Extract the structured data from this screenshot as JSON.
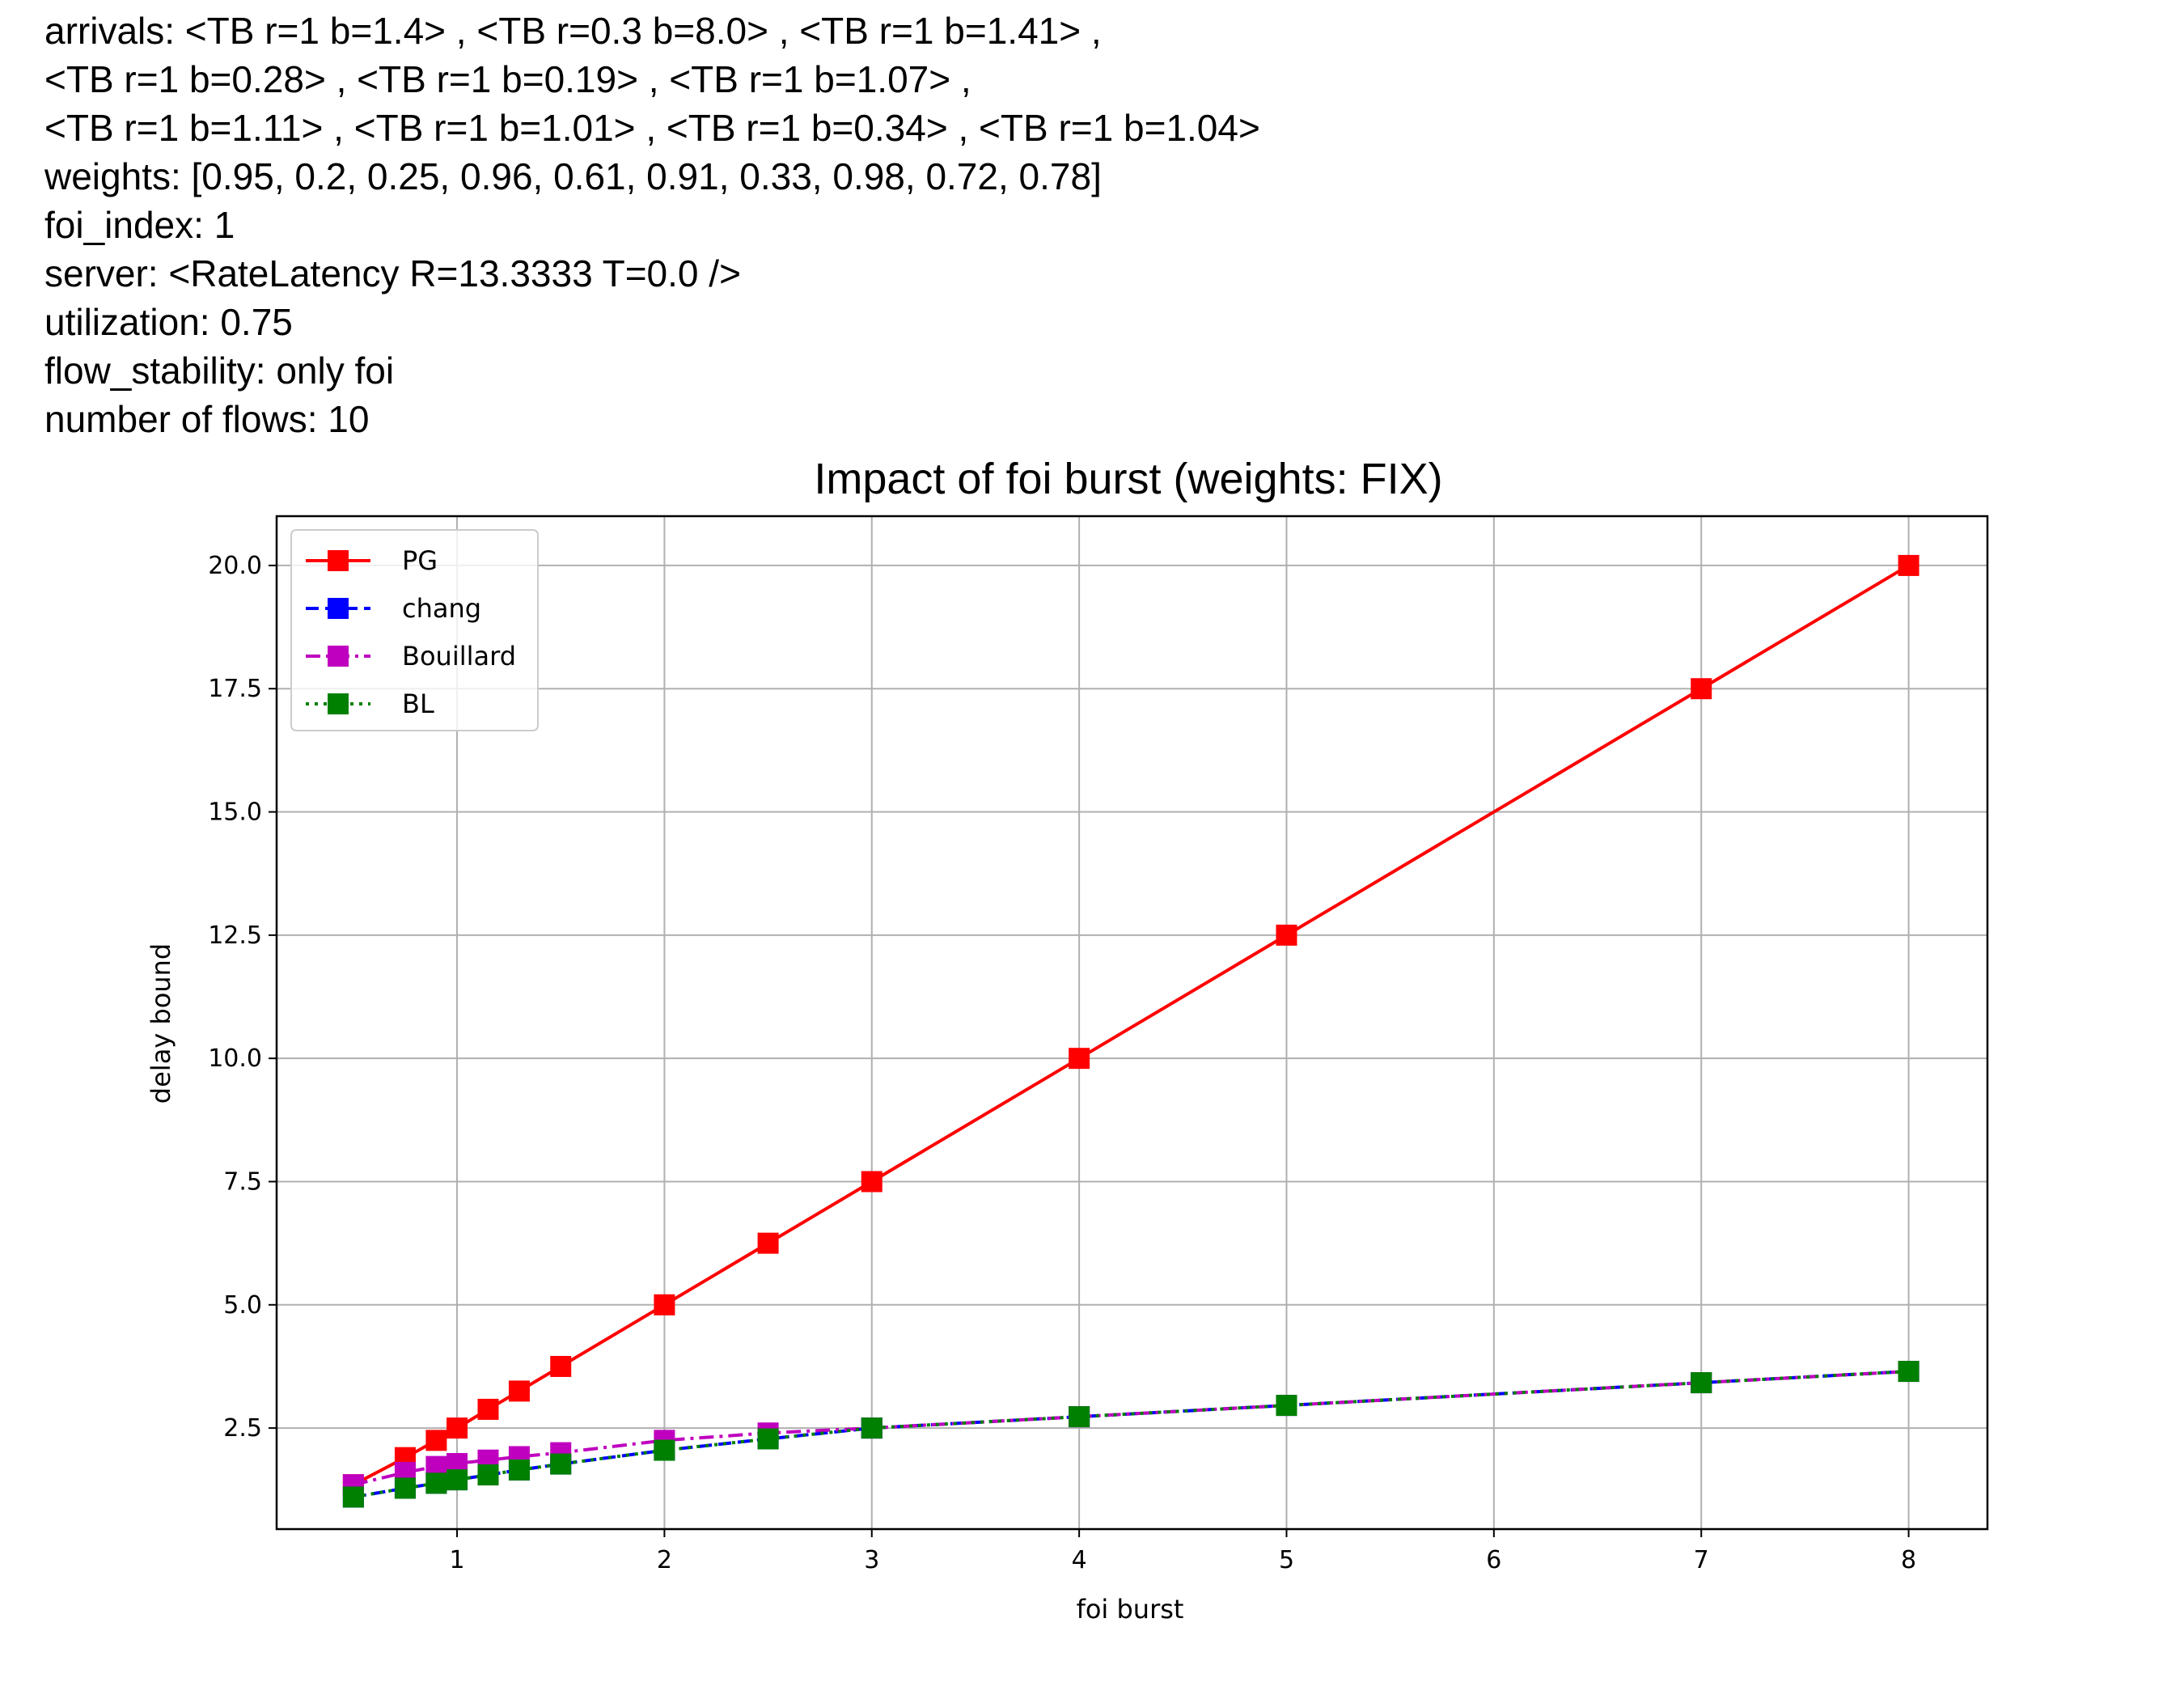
{
  "info_lines": [
    "arrivals: <TB r=1 b=1.4> , <TB r=0.3 b=8.0> , <TB r=1 b=1.41> ,",
    "<TB r=1 b=0.28> , <TB r=1 b=0.19> , <TB r=1 b=1.07> ,",
    "<TB r=1 b=1.11> , <TB r=1 b=1.01> , <TB r=1 b=0.34> , <TB r=1 b=1.04>",
    "weights: [0.95, 0.2, 0.25, 0.96, 0.61, 0.91, 0.33, 0.98, 0.72, 0.78]",
    "foi_index: 1",
    "server: <RateLatency R=13.3333 T=0.0 />",
    "utilization: 0.75",
    "flow_stability: only foi",
    "number of flows: 10"
  ],
  "chart_data": {
    "type": "line",
    "title": "Impact of foi burst (weights: FIX)",
    "xlabel": "foi burst",
    "ylabel": "delay bound",
    "x": [
      0.5,
      0.75,
      0.9,
      1.0,
      1.15,
      1.3,
      1.5,
      2.0,
      2.5,
      3.0,
      4.0,
      5.0,
      7.0,
      8.0
    ],
    "xlim": [
      0.13,
      8.38
    ],
    "ylim": [
      0.45,
      21.0
    ],
    "xticks": [
      1,
      2,
      3,
      4,
      5,
      6,
      7,
      8
    ],
    "yticks": [
      2.5,
      5.0,
      7.5,
      10.0,
      12.5,
      15.0,
      17.5,
      20.0
    ],
    "xtick_labels": [
      "1",
      "2",
      "3",
      "4",
      "5",
      "6",
      "7",
      "8"
    ],
    "ytick_labels": [
      "2.5",
      "5.0",
      "7.5",
      "10.0",
      "12.5",
      "15.0",
      "17.5",
      "20.0"
    ],
    "grid": true,
    "legend_position": "top-left",
    "series": [
      {
        "name": "PG",
        "color": "#ff0000",
        "dash": "solid",
        "marker": "square",
        "values": [
          1.35,
          1.9,
          2.25,
          2.5,
          2.88,
          3.25,
          3.75,
          5.0,
          6.25,
          7.5,
          10.0,
          12.5,
          17.5,
          20.0
        ]
      },
      {
        "name": "chang",
        "color": "#0000ff",
        "dash": "dashed",
        "marker": "square",
        "values": [
          1.1,
          1.28,
          1.38,
          1.45,
          1.55,
          1.65,
          1.77,
          2.05,
          2.28,
          2.5,
          2.73,
          2.96,
          3.42,
          3.65
        ]
      },
      {
        "name": "Bouillard",
        "color": "#bf00bf",
        "dash": "dashdot",
        "marker": "square",
        "values": [
          1.35,
          1.6,
          1.72,
          1.78,
          1.85,
          1.92,
          2.0,
          2.25,
          2.4,
          2.5,
          2.73,
          2.96,
          3.42,
          3.65
        ]
      },
      {
        "name": "BL",
        "color": "#008000",
        "dash": "dotted",
        "marker": "square",
        "values": [
          1.1,
          1.28,
          1.38,
          1.45,
          1.55,
          1.65,
          1.77,
          2.05,
          2.28,
          2.5,
          2.73,
          2.96,
          3.42,
          3.65
        ]
      }
    ]
  }
}
